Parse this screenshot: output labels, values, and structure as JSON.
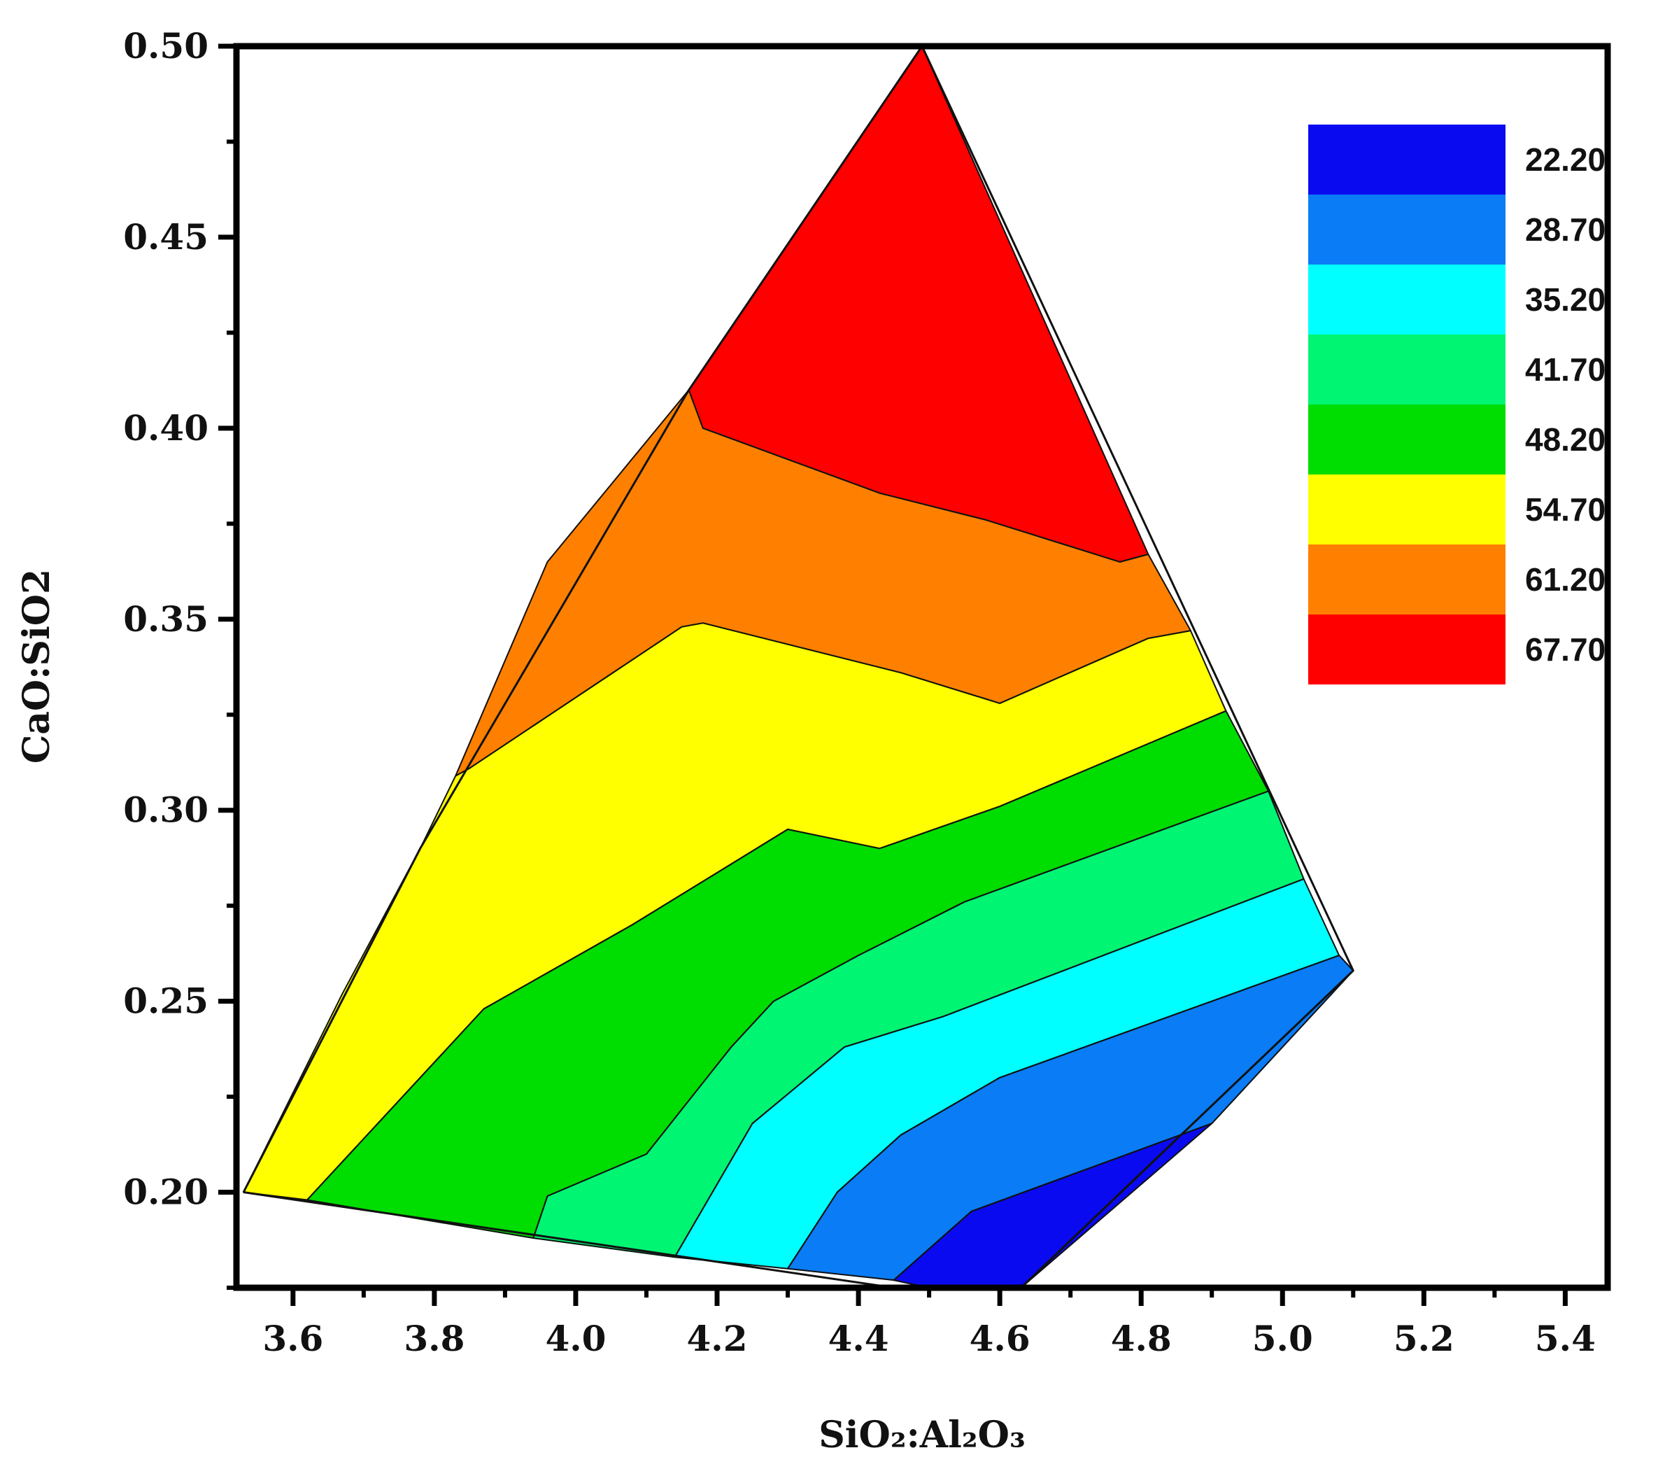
{
  "chart_data": {
    "type": "filled-contour",
    "xlabel": "SiO₂:Al₂O₃",
    "ylabel": "CaO:SiO2",
    "xlim": [
      3.52,
      5.46
    ],
    "ylim": [
      0.175,
      0.5
    ],
    "xticks": [
      "3.6",
      "3.8",
      "4.0",
      "4.2",
      "4.4",
      "4.6",
      "4.8",
      "5.0",
      "5.2",
      "5.4"
    ],
    "yticks": [
      "0.20",
      "0.25",
      "0.30",
      "0.35",
      "0.40",
      "0.45",
      "0.50"
    ],
    "domain": [
      [
        3.53,
        0.2
      ],
      [
        3.78,
        0.29
      ],
      [
        4.16,
        0.41
      ],
      [
        4.49,
        0.5
      ],
      [
        5.1,
        0.258
      ],
      [
        4.63,
        0.175
      ],
      [
        4.45,
        0.175
      ],
      [
        3.53,
        0.2
      ]
    ],
    "legend": {
      "position": "top-right",
      "levels": [
        {
          "label": "22.20",
          "color": "#0a0af0"
        },
        {
          "label": "28.70",
          "color": "#0a7cf5"
        },
        {
          "label": "35.20",
          "color": "#00ffff"
        },
        {
          "label": "41.70",
          "color": "#00f573"
        },
        {
          "label": "48.20",
          "color": "#00dd00"
        },
        {
          "label": "54.70",
          "color": "#ffff00"
        },
        {
          "label": "61.20",
          "color": "#ff8000"
        },
        {
          "label": "67.70",
          "color": "#ff0000"
        }
      ]
    },
    "contours": [
      {
        "level": "67.70",
        "points": [
          [
            4.16,
            0.41
          ],
          [
            4.49,
            0.5
          ],
          [
            4.81,
            0.367
          ],
          [
            4.77,
            0.365
          ],
          [
            4.58,
            0.376
          ],
          [
            4.43,
            0.383
          ],
          [
            4.18,
            0.4
          ]
        ]
      },
      {
        "level": "61.20",
        "points": [
          [
            3.83,
            0.309
          ],
          [
            3.96,
            0.365
          ],
          [
            4.16,
            0.41
          ],
          [
            4.18,
            0.4
          ],
          [
            4.43,
            0.383
          ],
          [
            4.58,
            0.376
          ],
          [
            4.77,
            0.365
          ],
          [
            4.81,
            0.367
          ],
          [
            4.87,
            0.347
          ],
          [
            4.81,
            0.345
          ],
          [
            4.6,
            0.328
          ],
          [
            4.46,
            0.336
          ],
          [
            4.18,
            0.349
          ],
          [
            4.15,
            0.348
          ],
          [
            3.85,
            0.311
          ]
        ]
      },
      {
        "level": "54.70",
        "points": [
          [
            3.53,
            0.2
          ],
          [
            3.67,
            0.252
          ],
          [
            3.78,
            0.29
          ],
          [
            3.83,
            0.309
          ],
          [
            3.85,
            0.311
          ],
          [
            4.15,
            0.348
          ],
          [
            4.18,
            0.349
          ],
          [
            4.46,
            0.336
          ],
          [
            4.6,
            0.328
          ],
          [
            4.81,
            0.345
          ],
          [
            4.87,
            0.347
          ],
          [
            4.92,
            0.326
          ],
          [
            4.6,
            0.301
          ],
          [
            4.43,
            0.29
          ],
          [
            4.3,
            0.295
          ],
          [
            4.08,
            0.27
          ],
          [
            3.87,
            0.248
          ],
          [
            3.62,
            0.198
          ]
        ]
      },
      {
        "level": "48.20",
        "points": [
          [
            3.62,
            0.198
          ],
          [
            3.87,
            0.248
          ],
          [
            4.08,
            0.27
          ],
          [
            4.3,
            0.295
          ],
          [
            4.43,
            0.29
          ],
          [
            4.6,
            0.301
          ],
          [
            4.92,
            0.326
          ],
          [
            4.98,
            0.305
          ],
          [
            4.55,
            0.276
          ],
          [
            4.4,
            0.262
          ],
          [
            4.28,
            0.25
          ],
          [
            4.22,
            0.238
          ],
          [
            4.1,
            0.21
          ],
          [
            3.96,
            0.199
          ],
          [
            3.94,
            0.188
          ]
        ]
      },
      {
        "level": "41.70",
        "points": [
          [
            3.94,
            0.188
          ],
          [
            3.96,
            0.199
          ],
          [
            4.1,
            0.21
          ],
          [
            4.22,
            0.238
          ],
          [
            4.28,
            0.25
          ],
          [
            4.4,
            0.262
          ],
          [
            4.55,
            0.276
          ],
          [
            4.98,
            0.305
          ],
          [
            5.03,
            0.282
          ],
          [
            4.52,
            0.246
          ],
          [
            4.38,
            0.238
          ],
          [
            4.25,
            0.218
          ],
          [
            4.14,
            0.183
          ]
        ]
      },
      {
        "level": "35.20",
        "points": [
          [
            4.14,
            0.183
          ],
          [
            4.25,
            0.218
          ],
          [
            4.38,
            0.238
          ],
          [
            4.52,
            0.246
          ],
          [
            5.03,
            0.282
          ],
          [
            5.08,
            0.262
          ],
          [
            4.6,
            0.23
          ],
          [
            4.46,
            0.215
          ],
          [
            4.37,
            0.2
          ],
          [
            4.3,
            0.18
          ]
        ]
      },
      {
        "level": "28.70",
        "points": [
          [
            4.3,
            0.18
          ],
          [
            4.37,
            0.2
          ],
          [
            4.46,
            0.215
          ],
          [
            4.6,
            0.23
          ],
          [
            5.08,
            0.262
          ],
          [
            5.1,
            0.258
          ],
          [
            4.9,
            0.218
          ],
          [
            4.56,
            0.195
          ],
          [
            4.45,
            0.177
          ]
        ]
      },
      {
        "level": "22.20",
        "points": [
          [
            4.45,
            0.177
          ],
          [
            4.56,
            0.195
          ],
          [
            4.9,
            0.218
          ],
          [
            4.63,
            0.175
          ],
          [
            4.5,
            0.175
          ]
        ]
      }
    ]
  }
}
